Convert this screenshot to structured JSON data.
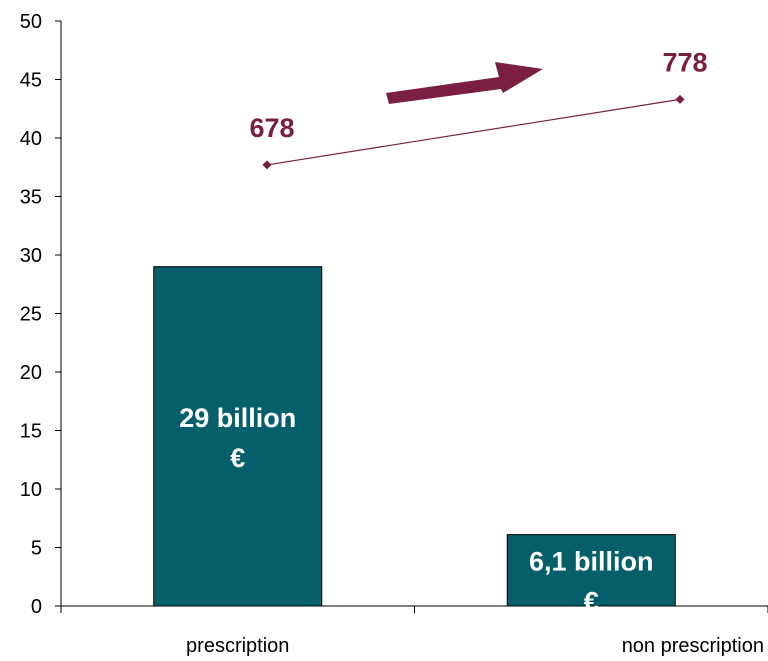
{
  "chart_data": {
    "type": "bar",
    "categories": [
      "prescription",
      "non prescription"
    ],
    "ylim": [
      0,
      50
    ],
    "yticks": [
      0,
      5,
      10,
      15,
      20,
      25,
      30,
      35,
      40,
      45,
      50
    ],
    "bars": {
      "values": [
        29,
        6.1
      ],
      "labels": [
        [
          "29 billion",
          "€"
        ],
        [
          "6,1 billion",
          "€"
        ]
      ],
      "color": "#055F6A"
    },
    "line": {
      "values": [
        37.7,
        43.3
      ],
      "labels": [
        "678",
        "778"
      ],
      "color": "#7A1F43"
    },
    "arrow_color": "#7A1F43",
    "grid": false,
    "legend": "none"
  }
}
